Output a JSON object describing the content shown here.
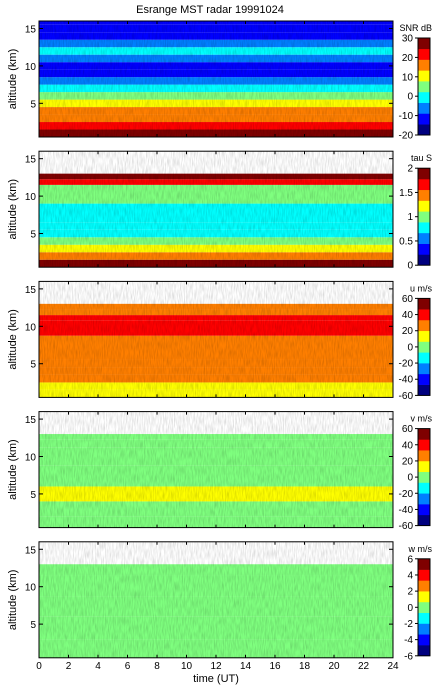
{
  "title": "Esrange MST radar 19991024",
  "colormap": [
    "#00007f",
    "#0000ff",
    "#007fff",
    "#00ffff",
    "#7fff7f",
    "#ffff00",
    "#ff7f00",
    "#ff0000",
    "#7f0000"
  ],
  "chart_data": [
    {
      "type": "heatmap",
      "title": "Esrange MST radar 19991024",
      "ylabel": "altitude (km)",
      "xlim": [
        0,
        24
      ],
      "ylim": [
        0.5,
        16
      ],
      "yticks": [
        "5",
        "10",
        "15"
      ],
      "colorbar": {
        "label": "SNR dB",
        "range": [
          -20,
          30
        ],
        "ticks": [
          "30",
          "20",
          "10",
          "0",
          "-10",
          "-20"
        ]
      },
      "profile": [
        {
          "alt": 1,
          "value": 25
        },
        {
          "alt": 2,
          "value": 22
        },
        {
          "alt": 3,
          "value": 17
        },
        {
          "alt": 4,
          "value": 14
        },
        {
          "alt": 5,
          "value": 10
        },
        {
          "alt": 6,
          "value": 5
        },
        {
          "alt": 7,
          "value": 2
        },
        {
          "alt": 8,
          "value": -5
        },
        {
          "alt": 9,
          "value": -10
        },
        {
          "alt": 10,
          "value": -13
        },
        {
          "alt": 11,
          "value": -6
        },
        {
          "alt": 12,
          "value": -3
        },
        {
          "alt": 13,
          "value": -6
        },
        {
          "alt": 14,
          "value": -9
        },
        {
          "alt": 15,
          "value": -9
        },
        {
          "alt": 16,
          "value": -10
        }
      ]
    },
    {
      "type": "heatmap",
      "ylabel": "altitude (km)",
      "xlim": [
        0,
        24
      ],
      "ylim": [
        0.5,
        16
      ],
      "yticks": [
        "5",
        "10",
        "15"
      ],
      "colorbar": {
        "label": "tau S",
        "range": [
          0,
          2
        ],
        "ticks": [
          "2",
          "1.5",
          "1",
          "0.5",
          "0"
        ]
      },
      "profile": [
        {
          "alt": 1,
          "value": 1.8
        },
        {
          "alt": 2,
          "value": 1.5
        },
        {
          "alt": 3,
          "value": 1.2
        },
        {
          "alt": 4,
          "value": 1.0
        },
        {
          "alt": 5,
          "value": 0.8
        },
        {
          "alt": 6,
          "value": 0.75
        },
        {
          "alt": 7,
          "value": 0.8
        },
        {
          "alt": 11,
          "value": 0.9
        },
        {
          "alt": 12,
          "value": 1.6
        },
        {
          "alt": 12.5,
          "value": 1.8
        }
      ]
    },
    {
      "type": "heatmap",
      "ylabel": "altitude (km)",
      "xlim": [
        0,
        24
      ],
      "ylim": [
        0.5,
        16
      ],
      "yticks": [
        "5",
        "10",
        "15"
      ],
      "colorbar": {
        "label": "u m/s",
        "range": [
          -60,
          60
        ],
        "ticks": [
          "60",
          "40",
          "20",
          "0",
          "-20",
          "-40",
          "-60"
        ]
      },
      "profile": [
        {
          "alt": 1,
          "value": 10
        },
        {
          "alt": 2,
          "value": 15
        },
        {
          "alt": 3,
          "value": 20
        },
        {
          "alt": 4,
          "value": 22
        },
        {
          "alt": 5,
          "value": 24
        },
        {
          "alt": 6,
          "value": 25
        },
        {
          "alt": 7,
          "value": 28
        },
        {
          "alt": 10.5,
          "value": 38
        },
        {
          "alt": 11,
          "value": 35
        },
        {
          "alt": 12,
          "value": 32
        },
        {
          "alt": 12.5,
          "value": 30
        }
      ]
    },
    {
      "type": "heatmap",
      "ylabel": "altitude (km)",
      "xlim": [
        0,
        24
      ],
      "ylim": [
        0.5,
        16
      ],
      "yticks": [
        "5",
        "10",
        "15"
      ],
      "colorbar": {
        "label": "v m/s",
        "range": [
          -60,
          60
        ],
        "ticks": [
          "60",
          "40",
          "20",
          "0",
          "-20",
          "-40",
          "-60"
        ]
      },
      "profile": [
        {
          "alt": 1,
          "value": 2
        },
        {
          "alt": 3,
          "value": 5
        },
        {
          "alt": 5,
          "value": 8
        },
        {
          "alt": 7,
          "value": 5
        },
        {
          "alt": 10.5,
          "value": 5
        },
        {
          "alt": 12,
          "value": 3
        },
        {
          "alt": 12.5,
          "value": 2
        }
      ]
    },
    {
      "type": "heatmap",
      "ylabel": "altitude (km)",
      "xlabel": "time (UT)",
      "xlim": [
        0,
        24
      ],
      "ylim": [
        0.5,
        16
      ],
      "yticks": [
        "5",
        "10",
        "15"
      ],
      "xticks": [
        "0",
        "2",
        "4",
        "6",
        "8",
        "10",
        "12",
        "14",
        "16",
        "18",
        "20",
        "22",
        "24"
      ],
      "colorbar": {
        "label": "w m/s",
        "range": [
          -6,
          6
        ],
        "ticks": [
          "6",
          "4",
          "2",
          "0",
          "-2",
          "-4",
          "-6"
        ]
      },
      "profile": [
        {
          "alt": 1,
          "value": 0
        },
        {
          "alt": 5,
          "value": 0.2
        },
        {
          "alt": 7,
          "value": 0
        },
        {
          "alt": 10.5,
          "value": 0.5
        },
        {
          "alt": 12.5,
          "value": 0.3
        }
      ]
    }
  ]
}
